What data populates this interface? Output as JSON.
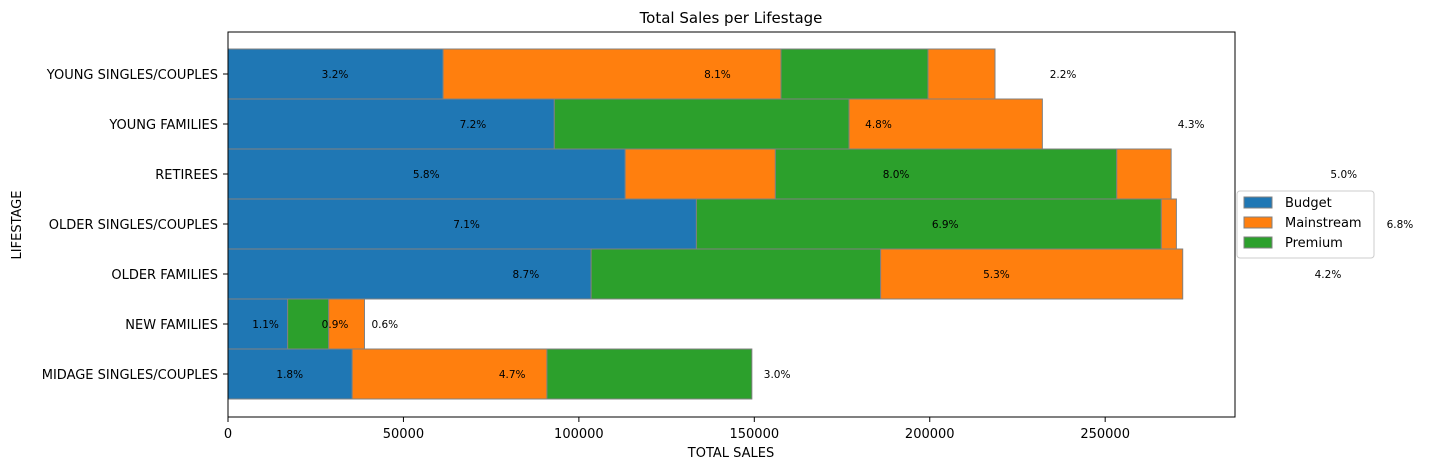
{
  "chart_data": {
    "type": "bar",
    "orientation": "horizontal",
    "stacked": true,
    "title": "Total Sales per Lifestage",
    "xlabel": "TOTAL SALES",
    "ylabel": "LIFESTAGE",
    "xlim": [
      0,
      287000
    ],
    "xticks": [
      0,
      50000,
      100000,
      150000,
      200000,
      250000
    ],
    "xtick_labels": [
      "0",
      "50000",
      "100000",
      "150000",
      "200000",
      "250000"
    ],
    "categories": [
      "YOUNG SINGLES/COUPLES",
      "YOUNG FAMILIES",
      "RETIREES",
      "OLDER SINGLES/COUPLES",
      "OLDER FAMILIES",
      "NEW FAMILIES",
      "MIDAGE SINGLES/COUPLES"
    ],
    "segments": [
      [
        {
          "series": "Budget",
          "start": 0,
          "end": 61300
        },
        {
          "series": "Mainstream",
          "start": 61300,
          "end": 157600
        },
        {
          "series": "Premium",
          "start": 157600,
          "end": 199500
        },
        {
          "series": "Mainstream",
          "start": 199500,
          "end": 218600
        }
      ],
      [
        {
          "series": "Budget",
          "start": 0,
          "end": 93000
        },
        {
          "series": "Premium",
          "start": 93000,
          "end": 177000
        },
        {
          "series": "Mainstream",
          "start": 177000,
          "end": 232100
        }
      ],
      [
        {
          "series": "Budget",
          "start": 0,
          "end": 113200
        },
        {
          "series": "Mainstream",
          "start": 113200,
          "end": 156000
        },
        {
          "series": "Premium",
          "start": 156000,
          "end": 253300
        },
        {
          "series": "Mainstream",
          "start": 253300,
          "end": 268800
        }
      ],
      [
        {
          "series": "Budget",
          "start": 0,
          "end": 133500
        },
        {
          "series": "Premium",
          "start": 133500,
          "end": 266000
        },
        {
          "series": "Mainstream",
          "start": 266000,
          "end": 270300
        }
      ],
      [
        {
          "series": "Budget",
          "start": 0,
          "end": 103500
        },
        {
          "series": "Premium",
          "start": 103500,
          "end": 186000
        },
        {
          "series": "Mainstream",
          "start": 186000,
          "end": 272100
        }
      ],
      [
        {
          "series": "Budget",
          "start": 0,
          "end": 17000
        },
        {
          "series": "Premium",
          "start": 17000,
          "end": 28700
        },
        {
          "series": "Mainstream",
          "start": 28700,
          "end": 38900
        }
      ],
      [
        {
          "series": "Budget",
          "start": 0,
          "end": 35400
        },
        {
          "series": "Mainstream",
          "start": 35400,
          "end": 90900
        },
        {
          "series": "Premium",
          "start": 90900,
          "end": 149300
        }
      ]
    ],
    "annotations": [
      {
        "text": "3.2%",
        "x": 30500,
        "row": 0
      },
      {
        "text": "8.1%",
        "x": 139500,
        "row": 0
      },
      {
        "text": "2.2%",
        "x": 238000,
        "row": 0
      },
      {
        "text": "7.2%",
        "x": 69800,
        "row": 1
      },
      {
        "text": "4.8%",
        "x": 185400,
        "row": 1
      },
      {
        "text": "4.3%",
        "x": 274500,
        "row": 1
      },
      {
        "text": "5.8%",
        "x": 56500,
        "row": 2
      },
      {
        "text": "8.0%",
        "x": 190400,
        "row": 2
      },
      {
        "text": "5.0%",
        "x": 318000,
        "row": 2
      },
      {
        "text": "7.1%",
        "x": 68000,
        "row": 3
      },
      {
        "text": "6.9%",
        "x": 204400,
        "row": 3
      },
      {
        "text": "6.8%",
        "x": 334000,
        "row": 3
      },
      {
        "text": "8.7%",
        "x": 84900,
        "row": 4
      },
      {
        "text": "5.3%",
        "x": 219000,
        "row": 4
      },
      {
        "text": "4.2%",
        "x": 313500,
        "row": 4
      },
      {
        "text": "1.1%",
        "x": 10700,
        "row": 5
      },
      {
        "text": "0.9%",
        "x": 30500,
        "row": 5
      },
      {
        "text": "0.6%",
        "x": 44700,
        "row": 5
      },
      {
        "text": "1.8%",
        "x": 17600,
        "row": 6
      },
      {
        "text": "4.7%",
        "x": 81000,
        "row": 6
      },
      {
        "text": "3.0%",
        "x": 156500,
        "row": 6
      }
    ],
    "series": [
      {
        "name": "Budget",
        "color": "#1f77b4"
      },
      {
        "name": "Mainstream",
        "color": "#ff7f0e"
      },
      {
        "name": "Premium",
        "color": "#2ca02c"
      }
    ],
    "legend_position": "center-right",
    "grid": false,
    "edge_color": "#808080"
  }
}
